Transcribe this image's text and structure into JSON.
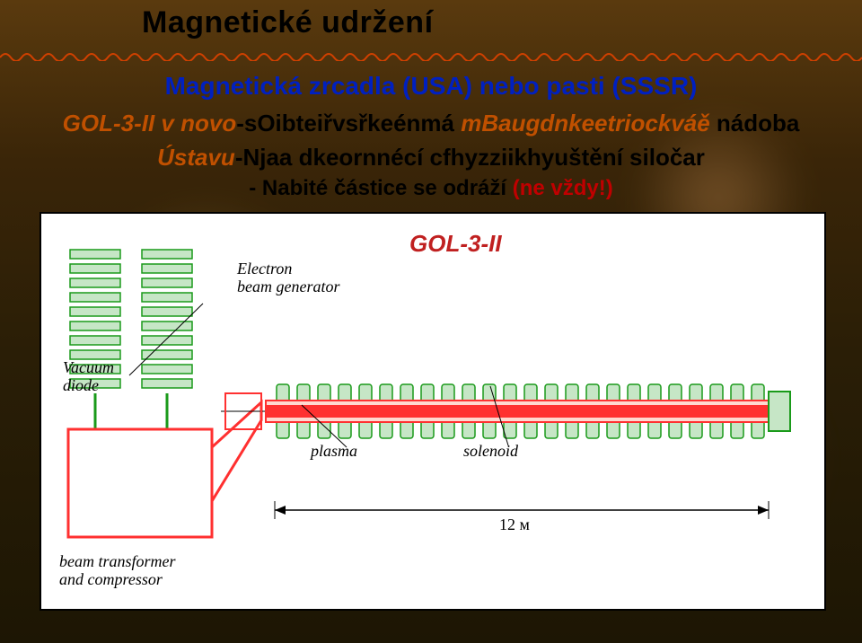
{
  "title": "Magnetické udržení",
  "subtitle": "Magnetická zrcadla (USA) nebo pasti (SSSR)",
  "lineA": {
    "orange_left": "GOL-3-II v novo",
    "black_mid1": "-sOibteiřvsřkeénmá ",
    "orange_mid": "mBaugdnkeetriockváě",
    "black_right": " nádoba"
  },
  "lineB": {
    "orange_left": "Ústavu",
    "black_mid1": "-Njaa dkeornnécí cfhyzziikhyuš",
    "black_right": "tění siločar"
  },
  "bullet3_black": "- Nabité částice se odráží ",
  "bullet3_red": "(ne vždy!)",
  "diagram": {
    "title": "GOL-3-II",
    "title_color": "#c02020",
    "title_fontsize": 26,
    "label_fontsize": 18,
    "labels": {
      "electron_gen": "Electron\nbeam generator",
      "vacuum_diode": "Vacuum\ndiode",
      "plasma": "plasma",
      "solenoid": "solenoid",
      "beam_transf": "beam transformer\nand compressor",
      "length": "12 м"
    },
    "colors": {
      "coil": "#1a9a1a",
      "coil_fill": "#c6e6c6",
      "tube": "#ff3030",
      "tube_light": "#ffd8d0",
      "box": "#ff3030",
      "box_fill": "#fff",
      "axis": "#000"
    }
  },
  "fonts": {
    "title_size": 34,
    "subtitle_size": 28,
    "line_size": 26,
    "bullet_size": 24
  }
}
